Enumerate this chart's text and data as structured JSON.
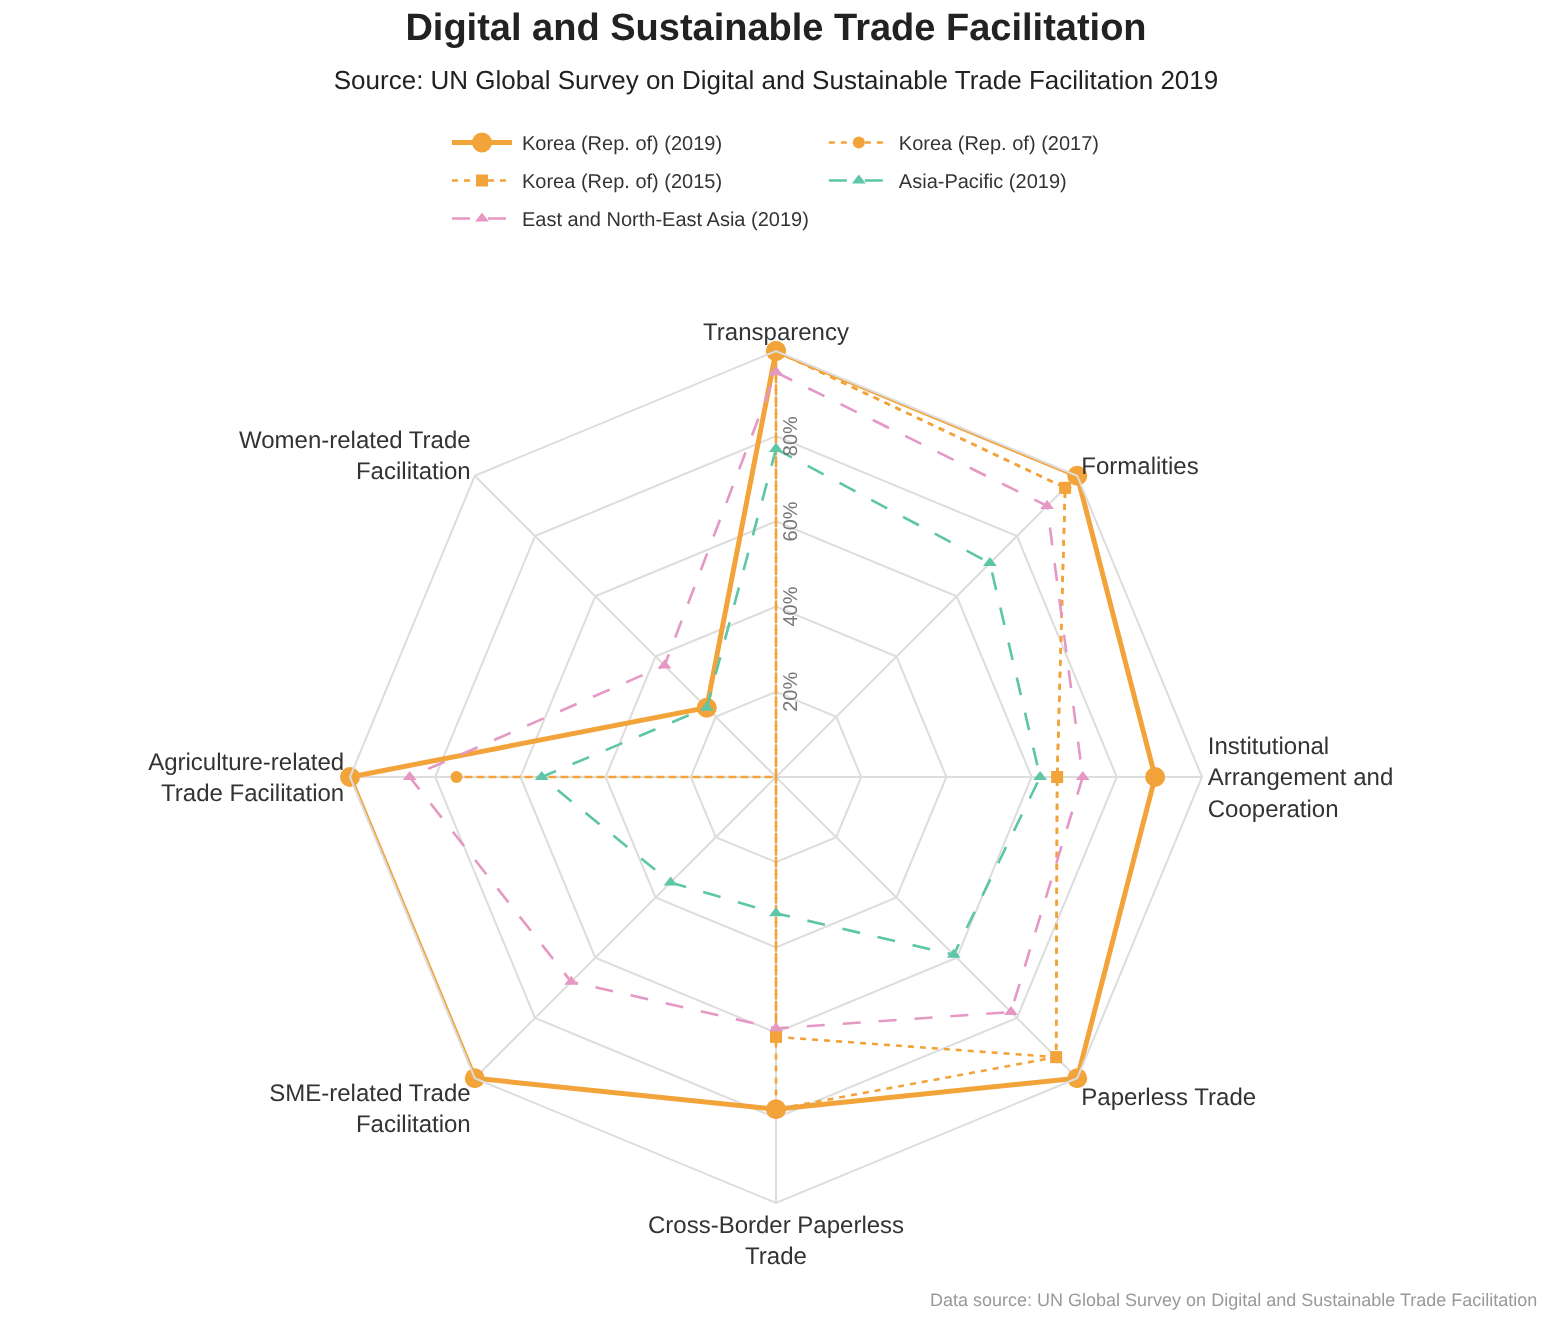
{
  "chart_data": {
    "type": "radar",
    "title": "Digital and Sustainable Trade Facilitation",
    "subtitle": "Source: UN Global Survey on Digital and Sustainable Trade Facilitation 2019",
    "categories": [
      "Transparency",
      "Formalities",
      "Institutional Arrangement and Cooperation",
      "Paperless Trade",
      "Cross-Border Paperless Trade",
      "SME-related Trade Facilitation",
      "Agriculture-related Trade Facilitation",
      "Women-related Trade Facilitation"
    ],
    "series": [
      {
        "name": "Korea (Rep. of) (2019)",
        "color": "#f2a33a",
        "line_style": "solid",
        "marker": "circle",
        "values": [
          100,
          100,
          89,
          100,
          78,
          100,
          100,
          23
        ]
      },
      {
        "name": "Korea (Rep. of) (2017)",
        "color": "#f2a33a",
        "line_style": "dotted",
        "marker": "circle",
        "values": [
          100,
          96,
          66,
          93,
          78,
          0,
          75,
          0
        ]
      },
      {
        "name": "Korea (Rep. of) (2015)",
        "color": "#f2a33a",
        "line_style": "dotted",
        "marker": "square",
        "values": [
          100,
          96,
          66,
          93,
          61,
          0,
          0,
          0
        ]
      },
      {
        "name": "Asia-Pacific (2019)",
        "color": "#5cc6a6",
        "line_style": "dashed",
        "marker": "triangle",
        "values": [
          77,
          71,
          62,
          59,
          32,
          35,
          55,
          23
        ]
      },
      {
        "name": "East and North-East Asia (2019)",
        "color": "#e598c4",
        "line_style": "dashed",
        "marker": "triangle",
        "values": [
          95,
          90,
          72,
          78,
          59,
          68,
          86,
          37
        ]
      }
    ],
    "ylim": [
      0,
      100
    ],
    "yticks": [
      {
        "value": 20,
        "label": "20%"
      },
      {
        "value": 40,
        "label": "40%"
      },
      {
        "value": 60,
        "label": "60%"
      },
      {
        "value": 80,
        "label": "80%"
      }
    ],
    "grid": true,
    "legend": "top",
    "annotations": [
      "Data source: UN Global Survey on Digital and Sustainable Trade Facilitation"
    ]
  }
}
